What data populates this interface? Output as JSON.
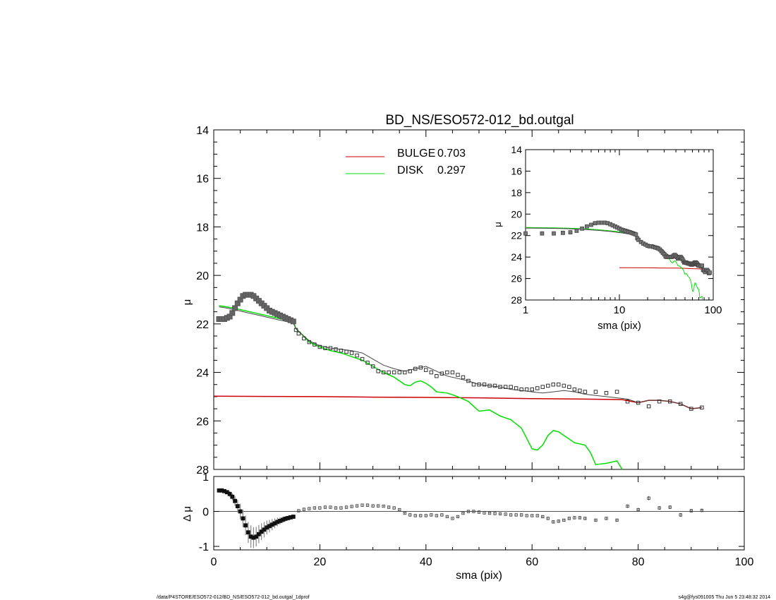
{
  "colors": {
    "bulge": "#cc0000",
    "disk": "#00e000",
    "total": "#444444",
    "data_points": "#333333",
    "axes": "#000000"
  },
  "chart_data": [
    {
      "id": "main",
      "type": "line",
      "title": "BD_NS/ESO572-012_bd.outgal",
      "xlabel": "",
      "ylabel": "μ",
      "xlim": [
        0,
        100
      ],
      "ylim": [
        28,
        14
      ],
      "y_inverted": true,
      "yticks": [
        14,
        16,
        18,
        20,
        22,
        24,
        26,
        28
      ],
      "legend": {
        "placement": "top-center",
        "entries": [
          {
            "label": "BULGE",
            "value": "0.703",
            "color": "#cc0000"
          },
          {
            "label": "DISK",
            "value": "0.297",
            "color": "#00e000"
          }
        ]
      },
      "observed": {
        "name": "",
        "marker": "square",
        "x": [
          1,
          1.5,
          2,
          2.5,
          3,
          3.5,
          4,
          4.5,
          5,
          5.5,
          6,
          6.5,
          7,
          7.5,
          8,
          8.5,
          9,
          9.5,
          10,
          10.5,
          11,
          11.5,
          12,
          12.5,
          13,
          13.5,
          14,
          14.5,
          15,
          15.5,
          16,
          17,
          18,
          19,
          20,
          21,
          22,
          23,
          24,
          25,
          26,
          27,
          28,
          29,
          30,
          31,
          32,
          33,
          34,
          35,
          36,
          37,
          38,
          39,
          40,
          41,
          42,
          43,
          44,
          45,
          46,
          47,
          48,
          49,
          50,
          51,
          52,
          53,
          54,
          55,
          56,
          57,
          58,
          59,
          60,
          61,
          62,
          63,
          64,
          65,
          66,
          67,
          68,
          69,
          70,
          72,
          74,
          76,
          78,
          80,
          82,
          84,
          86,
          88,
          90,
          92
        ],
        "y": [
          21.8,
          21.8,
          21.8,
          21.75,
          21.7,
          21.55,
          21.35,
          21.15,
          21.0,
          20.85,
          20.8,
          20.8,
          20.8,
          20.85,
          20.95,
          21.05,
          21.15,
          21.25,
          21.35,
          21.45,
          21.5,
          21.55,
          21.6,
          21.65,
          21.7,
          21.75,
          21.8,
          21.85,
          21.9,
          22.25,
          22.4,
          22.6,
          22.75,
          22.85,
          22.95,
          23.0,
          23.0,
          23.05,
          23.1,
          23.15,
          23.2,
          23.3,
          23.45,
          23.6,
          23.75,
          23.95,
          24.0,
          24.0,
          24.0,
          24.0,
          24.0,
          23.95,
          23.85,
          23.8,
          23.9,
          24.0,
          24.15,
          24.05,
          24.0,
          24.0,
          24.1,
          24.2,
          24.35,
          24.5,
          24.5,
          24.5,
          24.55,
          24.55,
          24.6,
          24.6,
          24.6,
          24.65,
          24.7,
          24.7,
          24.7,
          24.65,
          24.6,
          24.55,
          24.5,
          24.5,
          24.55,
          24.6,
          24.7,
          24.75,
          24.8,
          24.8,
          24.85,
          24.8,
          25.2,
          25.25,
          25.4,
          25.2,
          25.2,
          25.3,
          25.5,
          25.45
        ]
      },
      "total_model": {
        "name": "",
        "x": [
          1,
          2,
          3,
          4,
          5,
          6,
          7,
          8,
          9,
          10,
          11,
          12,
          13,
          14,
          15,
          15.5,
          16,
          18,
          20,
          22,
          24,
          26,
          28,
          30,
          32,
          34,
          36,
          38,
          40,
          42,
          44,
          46,
          48,
          50,
          52,
          54,
          56,
          58,
          60,
          62,
          64,
          66,
          68,
          70,
          72,
          74,
          76,
          78,
          80,
          82,
          84,
          86,
          88,
          90,
          92
        ],
        "y": [
          21.3,
          21.33,
          21.37,
          21.42,
          21.47,
          21.52,
          21.57,
          21.62,
          21.67,
          21.72,
          21.77,
          21.82,
          21.87,
          21.92,
          21.97,
          22.2,
          22.3,
          22.7,
          22.9,
          23.0,
          23.05,
          23.1,
          23.2,
          23.45,
          23.7,
          23.85,
          23.95,
          23.85,
          23.75,
          23.95,
          24.15,
          24.25,
          24.35,
          24.5,
          24.55,
          24.6,
          24.7,
          24.75,
          24.8,
          24.85,
          24.8,
          24.75,
          24.8,
          24.9,
          24.95,
          25.0,
          25.05,
          25.1,
          25.25,
          25.15,
          25.15,
          25.2,
          25.3,
          25.5,
          25.45
        ]
      },
      "series": [
        {
          "name": "BULGE",
          "color": "#cc0000",
          "x": [
            0,
            10,
            20,
            30,
            40,
            50,
            60,
            70,
            77,
            80,
            82,
            84,
            86,
            88,
            90,
            92
          ],
          "y": [
            24.98,
            24.99,
            25.0,
            25.02,
            25.03,
            25.05,
            25.08,
            25.1,
            25.12,
            25.25,
            25.15,
            25.15,
            25.2,
            25.3,
            25.5,
            25.45
          ]
        },
        {
          "name": "DISK",
          "color": "#00e000",
          "x": [
            1,
            2,
            3,
            4,
            5,
            6,
            7,
            8,
            9,
            10,
            11,
            12,
            13,
            14,
            15,
            15.5,
            16,
            18,
            20,
            22,
            24,
            26,
            28,
            30,
            32,
            34,
            36,
            37,
            38,
            39,
            40,
            41,
            42,
            44,
            46,
            48,
            49,
            50,
            52,
            54,
            56,
            58,
            60,
            61,
            62,
            63,
            64,
            65,
            66,
            68,
            70,
            71,
            72,
            74,
            76,
            77
          ],
          "y": [
            21.25,
            21.28,
            21.32,
            21.36,
            21.41,
            21.46,
            21.51,
            21.56,
            21.61,
            21.66,
            21.71,
            21.76,
            21.81,
            21.86,
            21.91,
            22.2,
            22.3,
            22.75,
            22.95,
            23.1,
            23.2,
            23.35,
            23.5,
            23.75,
            24.0,
            24.2,
            24.5,
            24.55,
            24.4,
            24.35,
            24.45,
            24.6,
            24.8,
            24.85,
            25.0,
            25.2,
            25.4,
            25.6,
            25.55,
            25.8,
            25.95,
            26.3,
            27.15,
            27.2,
            27.0,
            26.6,
            26.4,
            26.45,
            26.6,
            26.9,
            27.0,
            27.3,
            27.8,
            27.75,
            27.65,
            28.0
          ]
        }
      ]
    },
    {
      "id": "inset",
      "type": "line",
      "title": "",
      "xlabel": "sma (pix)",
      "ylabel": "μ",
      "x_scale": "log",
      "xlim": [
        1,
        100
      ],
      "xticks": [
        "1",
        "10",
        "100"
      ],
      "ylim": [
        28,
        14
      ],
      "y_inverted": true,
      "yticks": [
        14,
        16,
        18,
        20,
        22,
        24,
        26,
        28
      ]
    },
    {
      "id": "residual",
      "type": "scatter",
      "title": "",
      "xlabel": "sma (pix)",
      "ylabel": "Δ μ",
      "xlim": [
        0,
        100
      ],
      "xticks": [
        0,
        20,
        40,
        60,
        80,
        100
      ],
      "ylim": [
        -1.1,
        1.0
      ],
      "yticks": [
        1,
        0,
        -1
      ],
      "x": [
        1,
        1.5,
        2,
        2.5,
        3,
        3.5,
        4,
        4.5,
        5,
        5.5,
        6,
        6.5,
        7,
        7.5,
        8,
        8.5,
        9,
        9.5,
        10,
        10.5,
        11,
        11.5,
        12,
        12.5,
        13,
        13.5,
        14,
        14.5,
        15,
        16,
        17,
        18,
        19,
        20,
        21,
        22,
        23,
        24,
        25,
        26,
        27,
        28,
        29,
        30,
        31,
        32,
        33,
        34,
        35,
        36,
        37,
        38,
        39,
        40,
        41,
        42,
        43,
        44,
        45,
        46,
        47,
        48,
        49,
        50,
        51,
        52,
        53,
        54,
        55,
        56,
        57,
        58,
        59,
        60,
        61,
        62,
        63,
        64,
        65,
        66,
        67,
        68,
        69,
        70,
        72,
        74,
        76,
        78,
        80,
        82,
        84,
        86,
        88,
        90,
        92
      ],
      "y": [
        0.6,
        0.6,
        0.58,
        0.55,
        0.5,
        0.42,
        0.3,
        0.15,
        0.0,
        -0.2,
        -0.4,
        -0.6,
        -0.72,
        -0.75,
        -0.72,
        -0.65,
        -0.58,
        -0.52,
        -0.46,
        -0.42,
        -0.38,
        -0.34,
        -0.3,
        -0.27,
        -0.24,
        -0.21,
        -0.19,
        -0.17,
        -0.15,
        0.02,
        0.06,
        0.08,
        0.1,
        0.1,
        0.12,
        0.12,
        0.1,
        0.1,
        0.12,
        0.14,
        0.16,
        0.18,
        0.18,
        0.16,
        0.16,
        0.15,
        0.12,
        0.1,
        0.05,
        -0.05,
        -0.1,
        -0.12,
        -0.12,
        -0.12,
        -0.1,
        -0.12,
        -0.1,
        -0.15,
        -0.2,
        -0.15,
        -0.05,
        0.0,
        0.0,
        -0.02,
        -0.04,
        -0.05,
        -0.06,
        -0.07,
        -0.08,
        -0.1,
        -0.1,
        -0.1,
        -0.12,
        -0.12,
        -0.12,
        -0.15,
        -0.2,
        -0.3,
        -0.28,
        -0.25,
        -0.2,
        -0.18,
        -0.18,
        -0.2,
        -0.25,
        -0.2,
        -0.25,
        0.15,
        0.05,
        0.38,
        0.1,
        0.12,
        -0.1,
        0.02,
        0.03
      ],
      "err": [
        0.02,
        0.03,
        0.04,
        0.05,
        0.08,
        0.1,
        0.14,
        0.18,
        0.22,
        0.25,
        0.28,
        0.3,
        0.32,
        0.3,
        0.28,
        0.26,
        0.24,
        0.22,
        0.2,
        0.18,
        0.16,
        0.14,
        0.12,
        0.1,
        0.09,
        0.08,
        0.07,
        0.06,
        0.05,
        0.02,
        0.02,
        0.02,
        0.02,
        0.02,
        0.02,
        0.02,
        0.02,
        0.02,
        0.02,
        0.02,
        0.02,
        0.02,
        0.02,
        0.02,
        0.02,
        0.02,
        0.02,
        0.02,
        0.02,
        0.02,
        0.02,
        0.02,
        0.02,
        0.02,
        0.02,
        0.02,
        0.02,
        0.02,
        0.02,
        0.02,
        0.02,
        0.02,
        0.02,
        0.02,
        0.02,
        0.02,
        0.02,
        0.02,
        0.02,
        0.02,
        0.02,
        0.02,
        0.02,
        0.02,
        0.02,
        0.03,
        0.03,
        0.03,
        0.03,
        0.03,
        0.03,
        0.03,
        0.03,
        0.03,
        0.04,
        0.04,
        0.04,
        0.05,
        0.05,
        0.06,
        0.05,
        0.05,
        0.05,
        0.05,
        0.05
      ]
    }
  ],
  "footer": {
    "left": "/data/P4STORE/ESO572-012/BD_NS/ESO572-012_bd.outgal_1dprof",
    "right": "s4g@fys091005  Thu Jun  5 23:48:32 2014"
  }
}
